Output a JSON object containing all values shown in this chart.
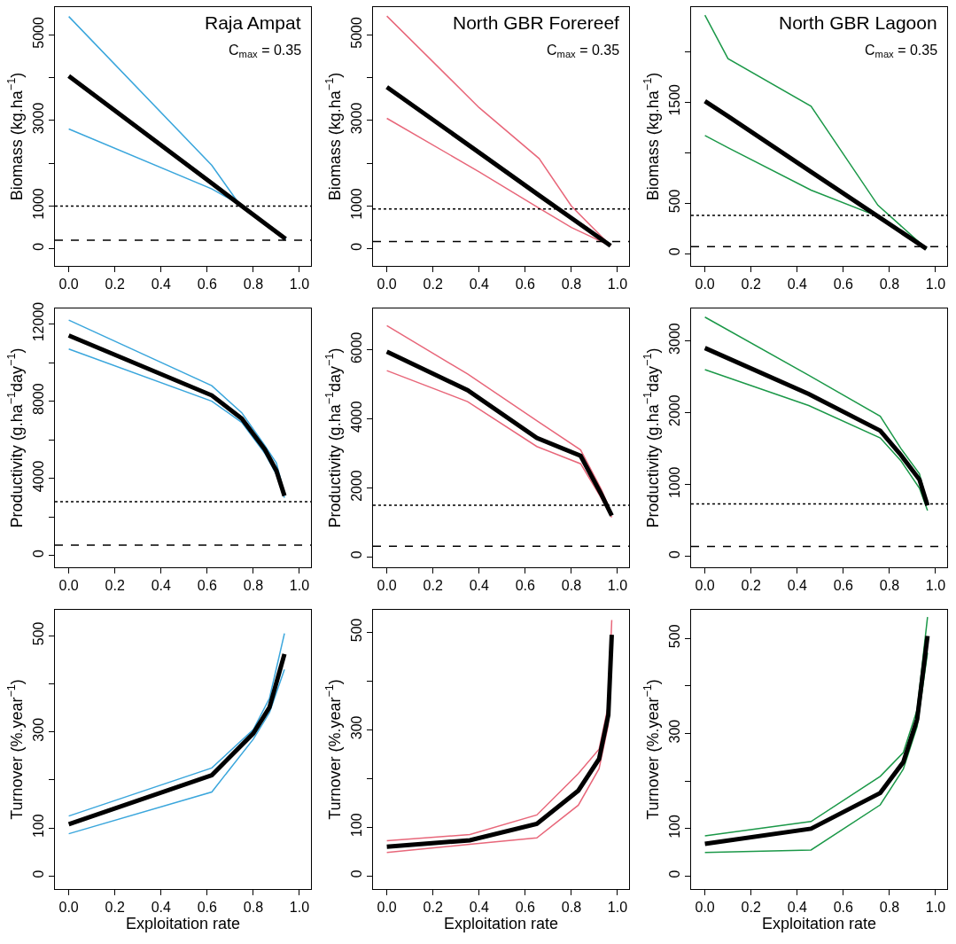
{
  "chart_data": [
    {
      "type": "line",
      "ylabel": "Biomass (kg.ha$^{−1}$)",
      "annotations": [
        "Raja Ampat",
        "C$_{max}$ = 0.35"
      ],
      "xlim": [
        -0.06,
        1.05
      ],
      "xticks": [
        {
          "value": 0,
          "label": "0.0"
        },
        {
          "value": 0.2,
          "label": "0.2"
        },
        {
          "value": 0.4,
          "label": "0.4"
        },
        {
          "value": 0.6,
          "label": "0.6"
        },
        {
          "value": 0.8,
          "label": "0.8"
        },
        {
          "value": 1,
          "label": "1.0"
        }
      ],
      "ylim": [
        -400,
        5650
      ],
      "yticks": [
        0,
        1000,
        {
          "value": 2000,
          "label": null
        },
        3000,
        {
          "value": 4000,
          "label": null
        },
        5000
      ],
      "ref_lines": [
        {
          "axis": "y",
          "value": 1000,
          "line_style": "dotted"
        },
        {
          "axis": "y",
          "value": 200,
          "line_style": "dashed"
        }
      ],
      "series": [
        {
          "color": "#3aa6dc",
          "x": [
            0,
            0.62,
            0.74,
            0.94
          ],
          "values": [
            5430,
            1950,
            1040,
            230
          ]
        },
        {
          "color": "#3aa6dc",
          "x": [
            0,
            0.62,
            0.74,
            0.94
          ],
          "values": [
            2800,
            1400,
            1040,
            230
          ]
        },
        {
          "color": "#000000",
          "x": [
            0,
            0.62,
            0.74,
            0.94
          ],
          "values": [
            4040,
            1530,
            1040,
            230
          ]
        }
      ]
    },
    {
      "type": "line",
      "ylabel": "Biomass (kg.ha$^{−1}$)",
      "annotations": [
        "North GBR Forereef",
        "C$_{max}$ = 0.35"
      ],
      "xlim": [
        -0.06,
        1.05
      ],
      "xticks": [
        {
          "value": 0,
          "label": "0.0"
        },
        {
          "value": 0.2,
          "label": "0.2"
        },
        {
          "value": 0.4,
          "label": "0.4"
        },
        {
          "value": 0.6,
          "label": "0.6"
        },
        {
          "value": 0.8,
          "label": "0.8"
        },
        {
          "value": 1,
          "label": "1.0"
        }
      ],
      "ylim": [
        -400,
        5650
      ],
      "yticks": [
        0,
        1000,
        {
          "value": 2000,
          "label": null
        },
        3000,
        {
          "value": 4000,
          "label": null
        },
        5000
      ],
      "ref_lines": [
        {
          "axis": "y",
          "value": 930,
          "line_style": "dotted"
        },
        {
          "axis": "y",
          "value": 170,
          "line_style": "dashed"
        }
      ],
      "series": [
        {
          "color": "#e8677a",
          "x": [
            0,
            0.4,
            0.66,
            0.8,
            0.97
          ],
          "values": [
            5440,
            3300,
            2110,
            1000,
            70
          ]
        },
        {
          "color": "#e8677a",
          "x": [
            0,
            0.4,
            0.66,
            0.8,
            0.97
          ],
          "values": [
            3050,
            1800,
            950,
            500,
            70
          ]
        },
        {
          "color": "#000000",
          "x": [
            0,
            0.4,
            0.66,
            0.8,
            0.97
          ],
          "values": [
            3780,
            2250,
            1250,
            720,
            70
          ]
        }
      ]
    },
    {
      "type": "line",
      "ylabel": "Biomass (kg.ha$^{−1}$)",
      "annotations": [
        "North GBR Lagoon",
        "C$_{max}$ = 0.35"
      ],
      "xlim": [
        -0.06,
        1.05
      ],
      "xticks": [
        {
          "value": 0,
          "label": "0.0"
        },
        {
          "value": 0.2,
          "label": "0.2"
        },
        {
          "value": 0.4,
          "label": "0.4"
        },
        {
          "value": 0.6,
          "label": "0.6"
        },
        {
          "value": 0.8,
          "label": "0.8"
        },
        {
          "value": 1,
          "label": "1.0"
        }
      ],
      "ylim": [
        -120,
        2440
      ],
      "yticks": [
        0,
        500,
        {
          "value": 1000,
          "label": null
        },
        1500,
        {
          "value": 2000,
          "label": null
        }
      ],
      "ref_lines": [
        {
          "axis": "y",
          "value": 380,
          "line_style": "dotted"
        },
        {
          "axis": "y",
          "value": 70,
          "line_style": "dashed"
        }
      ],
      "series": [
        {
          "color": "#1b9848",
          "x": [
            0,
            0.1,
            0.46,
            0.75,
            0.96
          ],
          "values": [
            2360,
            1930,
            1460,
            480,
            50
          ]
        },
        {
          "color": "#1b9848",
          "x": [
            0,
            0.1,
            0.46,
            0.75,
            0.96
          ],
          "values": [
            1170,
            1050,
            630,
            370,
            50
          ]
        },
        {
          "color": "#000000",
          "x": [
            0,
            0.1,
            0.46,
            0.75,
            0.96
          ],
          "values": [
            1510,
            1360,
            810,
            370,
            50
          ]
        }
      ]
    },
    {
      "type": "line",
      "ylabel": "Productivity (g.ha$^{−1}$day$^{−1}$)",
      "xlim": [
        -0.06,
        1.05
      ],
      "xticks": [
        {
          "value": 0,
          "label": "0.0"
        },
        {
          "value": 0.2,
          "label": "0.2"
        },
        {
          "value": 0.4,
          "label": "0.4"
        },
        {
          "value": 0.6,
          "label": "0.6"
        },
        {
          "value": 0.8,
          "label": "0.8"
        },
        {
          "value": 1,
          "label": "1.0"
        }
      ],
      "ylim": [
        -600,
        12800
      ],
      "yticks": [
        0,
        {
          "value": 2000,
          "label": null
        },
        4000,
        {
          "value": 6000,
          "label": null
        },
        8000,
        {
          "value": 10000,
          "label": null
        },
        12000
      ],
      "ref_lines": [
        {
          "axis": "y",
          "value": 2800,
          "line_style": "dotted"
        },
        {
          "axis": "y",
          "value": 550,
          "line_style": "dashed"
        }
      ],
      "series": [
        {
          "color": "#3aa6dc",
          "x": [
            0,
            0.62,
            0.75,
            0.85,
            0.9,
            0.935
          ],
          "values": [
            12200,
            8800,
            7400,
            5700,
            4800,
            3200
          ]
        },
        {
          "color": "#3aa6dc",
          "x": [
            0,
            0.62,
            0.75,
            0.85,
            0.9,
            0.935
          ],
          "values": [
            10700,
            8000,
            6900,
            5300,
            4200,
            3000
          ]
        },
        {
          "color": "#000000",
          "x": [
            0,
            0.62,
            0.75,
            0.85,
            0.9,
            0.935
          ],
          "values": [
            11400,
            8300,
            7100,
            5500,
            4400,
            3100
          ]
        }
      ]
    },
    {
      "type": "line",
      "ylabel": "Productivity (g.ha$^{−1}$day$^{−1}$)",
      "xlim": [
        -0.06,
        1.05
      ],
      "xticks": [
        {
          "value": 0,
          "label": "0.0"
        },
        {
          "value": 0.2,
          "label": "0.2"
        },
        {
          "value": 0.4,
          "label": "0.4"
        },
        {
          "value": 0.6,
          "label": "0.6"
        },
        {
          "value": 0.8,
          "label": "0.8"
        },
        {
          "value": 1,
          "label": "1.0"
        }
      ],
      "ylim": [
        -300,
        7200
      ],
      "yticks": [
        0,
        2000,
        4000,
        6000
      ],
      "ref_lines": [
        {
          "axis": "y",
          "value": 1500,
          "line_style": "dotted"
        },
        {
          "axis": "y",
          "value": 310,
          "line_style": "dashed"
        }
      ],
      "series": [
        {
          "color": "#e8677a",
          "x": [
            0,
            0.35,
            0.65,
            0.84,
            0.93,
            0.975
          ],
          "values": [
            6700,
            5300,
            3950,
            3100,
            1950,
            1250
          ]
        },
        {
          "color": "#e8677a",
          "x": [
            0,
            0.35,
            0.65,
            0.84,
            0.93,
            0.975
          ],
          "values": [
            5400,
            4500,
            3200,
            2700,
            1700,
            1150
          ]
        },
        {
          "color": "#000000",
          "x": [
            0,
            0.35,
            0.65,
            0.84,
            0.93,
            0.975
          ],
          "values": [
            5950,
            4830,
            3450,
            2930,
            1810,
            1200
          ]
        }
      ]
    },
    {
      "type": "line",
      "ylabel": "Productivity (g.ha$^{−1}$day$^{−1}$)",
      "xlim": [
        -0.06,
        1.05
      ],
      "xticks": [
        {
          "value": 0,
          "label": "0.0"
        },
        {
          "value": 0.2,
          "label": "0.2"
        },
        {
          "value": 0.4,
          "label": "0.4"
        },
        {
          "value": 0.6,
          "label": "0.6"
        },
        {
          "value": 0.8,
          "label": "0.8"
        },
        {
          "value": 1,
          "label": "1.0"
        }
      ],
      "ylim": [
        -150,
        3450
      ],
      "yticks": [
        0,
        1000,
        2000,
        3000
      ],
      "ref_lines": [
        {
          "axis": "y",
          "value": 730,
          "line_style": "dotted"
        },
        {
          "axis": "y",
          "value": 140,
          "line_style": "dashed"
        }
      ],
      "series": [
        {
          "color": "#1b9848",
          "x": [
            0,
            0.45,
            0.76,
            0.85,
            0.93,
            0.965
          ],
          "values": [
            3330,
            2520,
            1950,
            1500,
            1150,
            720
          ]
        },
        {
          "color": "#1b9848",
          "x": [
            0,
            0.45,
            0.76,
            0.85,
            0.93,
            0.965
          ],
          "values": [
            2600,
            2100,
            1650,
            1330,
            950,
            640
          ]
        },
        {
          "color": "#000000",
          "x": [
            0,
            0.45,
            0.76,
            0.85,
            0.93,
            0.965
          ],
          "values": [
            2900,
            2260,
            1750,
            1410,
            1070,
            710
          ]
        }
      ]
    },
    {
      "type": "line",
      "ylabel": "Turnover (%.year$^{−1}$)",
      "xlabel": "Exploitation rate",
      "xlim": [
        -0.06,
        1.05
      ],
      "xticks": [
        {
          "value": 0,
          "label": "0.0"
        },
        {
          "value": 0.2,
          "label": "0.2"
        },
        {
          "value": 0.4,
          "label": "0.4"
        },
        {
          "value": 0.6,
          "label": "0.6"
        },
        {
          "value": 0.8,
          "label": "0.8"
        },
        {
          "value": 1,
          "label": "1.0"
        }
      ],
      "ylim": [
        -27,
        554
      ],
      "yticks": [
        0,
        100,
        {
          "value": 200,
          "label": null
        },
        300,
        {
          "value": 400,
          "label": null
        },
        500
      ],
      "series": [
        {
          "color": "#3aa6dc",
          "x": [
            0,
            0.62,
            0.8,
            0.87,
            0.935
          ],
          "values": [
            125,
            225,
            305,
            370,
            505
          ]
        },
        {
          "color": "#3aa6dc",
          "x": [
            0,
            0.62,
            0.8,
            0.87,
            0.935
          ],
          "values": [
            88,
            175,
            285,
            340,
            430
          ]
        },
        {
          "color": "#000000",
          "x": [
            0,
            0.62,
            0.8,
            0.87,
            0.935
          ],
          "values": [
            108,
            210,
            297,
            351,
            462
          ]
        }
      ]
    },
    {
      "type": "line",
      "ylabel": "Turnover (%.year$^{−1}$)",
      "xlabel": "Exploitation rate",
      "xlim": [
        -0.06,
        1.05
      ],
      "xticks": [
        {
          "value": 0,
          "label": "0.0"
        },
        {
          "value": 0.2,
          "label": "0.2"
        },
        {
          "value": 0.4,
          "label": "0.4"
        },
        {
          "value": 0.6,
          "label": "0.6"
        },
        {
          "value": 0.8,
          "label": "0.8"
        },
        {
          "value": 1,
          "label": "1.0"
        }
      ],
      "ylim": [
        -27,
        546
      ],
      "yticks": [
        0,
        100,
        {
          "value": 200,
          "label": null
        },
        300,
        {
          "value": 400,
          "label": null
        },
        500
      ],
      "series": [
        {
          "color": "#e8677a",
          "x": [
            0,
            0.36,
            0.65,
            0.83,
            0.92,
            0.96,
            0.975
          ],
          "values": [
            72,
            85,
            125,
            210,
            260,
            350,
            525
          ]
        },
        {
          "color": "#e8677a",
          "x": [
            0,
            0.36,
            0.65,
            0.83,
            0.92,
            0.96,
            0.975
          ],
          "values": [
            48,
            65,
            78,
            145,
            220,
            310,
            470
          ]
        },
        {
          "color": "#000000",
          "x": [
            0,
            0.36,
            0.65,
            0.83,
            0.92,
            0.96,
            0.975
          ],
          "values": [
            60,
            73,
            107,
            175,
            240,
            330,
            495
          ]
        }
      ]
    },
    {
      "type": "line",
      "ylabel": "Turnover (%.year$^{−1}$)",
      "xlabel": "Exploitation rate",
      "xlim": [
        -0.06,
        1.05
      ],
      "xticks": [
        {
          "value": 0,
          "label": "0.0"
        },
        {
          "value": 0.2,
          "label": "0.2"
        },
        {
          "value": 0.4,
          "label": "0.4"
        },
        {
          "value": 0.6,
          "label": "0.6"
        },
        {
          "value": 0.8,
          "label": "0.8"
        },
        {
          "value": 1,
          "label": "1.0"
        }
      ],
      "ylim": [
        -27,
        560
      ],
      "yticks": [
        0,
        100,
        {
          "value": 200,
          "label": null
        },
        300,
        {
          "value": 400,
          "label": null
        },
        500
      ],
      "series": [
        {
          "color": "#1b9848",
          "x": [
            0,
            0.46,
            0.76,
            0.86,
            0.92,
            0.965
          ],
          "values": [
            85,
            115,
            210,
            260,
            350,
            545
          ]
        },
        {
          "color": "#1b9848",
          "x": [
            0,
            0.46,
            0.76,
            0.86,
            0.92,
            0.965
          ],
          "values": [
            50,
            55,
            150,
            225,
            315,
            470
          ]
        },
        {
          "color": "#000000",
          "x": [
            0,
            0.46,
            0.76,
            0.86,
            0.92,
            0.965
          ],
          "values": [
            68,
            100,
            175,
            240,
            330,
            505
          ]
        }
      ]
    }
  ]
}
